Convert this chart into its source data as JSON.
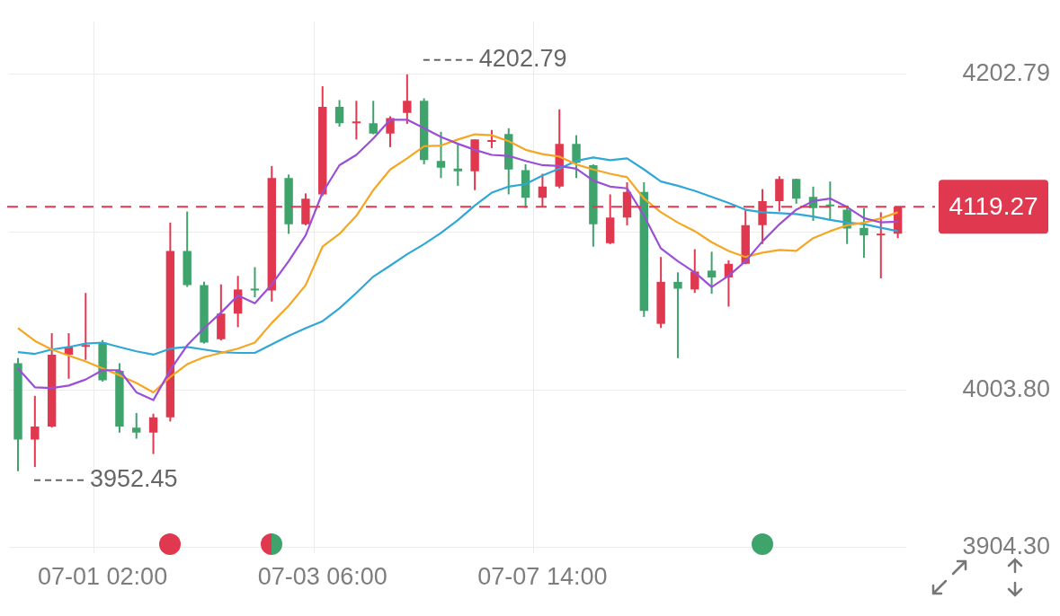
{
  "chart_data": {
    "type": "candlestick",
    "categories": [
      null,
      null,
      null,
      null,
      null,
      "07-01 02:00",
      null,
      null,
      null,
      null,
      null,
      null,
      null,
      null,
      null,
      null,
      null,
      null,
      "07-03 06:00",
      null,
      null,
      null,
      null,
      null,
      null,
      null,
      null,
      null,
      null,
      null,
      null,
      "07-07 14:00",
      null,
      null,
      null,
      null,
      null,
      null,
      null,
      null,
      null,
      null,
      null,
      null,
      null,
      null,
      null,
      null,
      null,
      null,
      null,
      null,
      null
    ],
    "ohlc": [
      [
        4020.6,
        4023.8,
        3952.45,
        3972.4
      ],
      [
        3972.4,
        4000.0,
        3955.1,
        3980.6
      ],
      [
        3980.6,
        4039.5,
        3980.0,
        4026.0
      ],
      [
        4026.0,
        4039.5,
        4010.8,
        4030.9
      ],
      [
        4030.9,
        4064.9,
        4022.7,
        4031.5
      ],
      [
        4033.6,
        4035.2,
        4009.0,
        4009.8
      ],
      [
        4015.7,
        4020.6,
        3976.8,
        3980.6
      ],
      [
        3980.0,
        3989.2,
        3973.0,
        3976.8
      ],
      [
        3976.8,
        3988.7,
        3963.3,
        3986.5
      ],
      [
        3986.5,
        4109.3,
        3983.8,
        4091.4
      ],
      [
        4091.4,
        4116.3,
        4068.7,
        4069.8
      ],
      [
        4069.8,
        4072.0,
        4033.0,
        4033.6
      ],
      [
        4035.7,
        4070.3,
        4035.0,
        4051.9
      ],
      [
        4051.9,
        4075.7,
        4043.3,
        4067.1
      ],
      [
        4067.1,
        4081.2,
        4062.2,
        4066.5
      ],
      [
        4066.5,
        4145.0,
        4059.5,
        4137.4
      ],
      [
        4137.4,
        4139.6,
        4102.2,
        4108.2
      ],
      [
        4108.2,
        4127.7,
        4107.6,
        4124.4
      ],
      [
        4127.1,
        4195.3,
        4126.0,
        4182.3
      ],
      [
        4182.3,
        4186.6,
        4169.8,
        4172.0
      ],
      [
        4172.0,
        4186.1,
        4161.7,
        4172.5
      ],
      [
        4172.0,
        4186.1,
        4165.0,
        4165.5
      ],
      [
        4165.5,
        4176.3,
        4156.9,
        4175.2
      ],
      [
        4178.5,
        4202.79,
        4171.5,
        4186.1
      ],
      [
        4186.1,
        4187.7,
        4146.1,
        4148.8
      ],
      [
        4148.2,
        4166.6,
        4137.4,
        4143.9
      ],
      [
        4143.4,
        4159.0,
        4132.5,
        4141.7
      ],
      [
        4141.7,
        4161.7,
        4129.8,
        4161.7
      ],
      [
        4160.2,
        4167.7,
        4156.3,
        4161.0
      ],
      [
        4165.1,
        4168.8,
        4127.1,
        4142.8
      ],
      [
        4142.3,
        4146.1,
        4118.5,
        4125.0
      ],
      [
        4125.0,
        4140.1,
        4119.3,
        4132.0
      ],
      [
        4132.0,
        4180.7,
        4131.0,
        4159.0
      ],
      [
        4159.0,
        4164.4,
        4137.4,
        4147.1
      ],
      [
        4145.5,
        4146.0,
        4094.1,
        4108.2
      ],
      [
        4096.3,
        4127.1,
        4095.7,
        4112.5
      ],
      [
        4112.5,
        4134.7,
        4107.6,
        4128.7
      ],
      [
        4128.7,
        4134.7,
        4049.8,
        4053.6
      ],
      [
        4045.4,
        4087.6,
        4042.8,
        4071.9
      ],
      [
        4071.9,
        4077.9,
        4023.8,
        4067.6
      ],
      [
        4067.1,
        4092.5,
        4064.9,
        4078.4
      ],
      [
        4079.0,
        4090.9,
        4064.4,
        4074.7
      ],
      [
        4074.7,
        4085.5,
        4056.3,
        4083.3
      ],
      [
        4083.3,
        4117.9,
        4083.0,
        4107.6
      ],
      [
        4107.6,
        4130.4,
        4095.8,
        4122.8
      ],
      [
        4122.8,
        4138.5,
        4116.3,
        4136.9
      ],
      [
        4136.9,
        4137.0,
        4121.2,
        4124.4
      ],
      [
        4125.5,
        4132.0,
        4110.4,
        4118.5
      ],
      [
        4120.6,
        4135.2,
        4110.4,
        4119.5
      ],
      [
        4117.4,
        4120.1,
        4095.8,
        4105.5
      ],
      [
        4106.0,
        4118.5,
        4087.1,
        4101.2
      ],
      [
        4101.2,
        4115.8,
        4074.1,
        4101.8
      ],
      [
        4102.3,
        4119.27,
        4099.5,
        4119.27
      ]
    ],
    "colors": [
      "#3fa36c",
      "#e0394f",
      "#e0394f",
      "#e0394f",
      "#e0394f",
      "#3fa36c",
      "#3fa36c",
      "#3fa36c",
      "#e0394f",
      "#e0394f",
      "#3fa36c",
      "#3fa36c",
      "#e0394f",
      "#e0394f",
      "#3fa36c",
      "#e0394f",
      "#3fa36c",
      "#e0394f",
      "#e0394f",
      "#3fa36c",
      "#e0394f",
      "#3fa36c",
      "#e0394f",
      "#e0394f",
      "#3fa36c",
      "#3fa36c",
      "#3fa36c",
      "#e0394f",
      "#e0394f",
      "#3fa36c",
      "#3fa36c",
      "#e0394f",
      "#e0394f",
      "#3fa36c",
      "#3fa36c",
      "#e0394f",
      "#e0394f",
      "#3fa36c",
      "#e0394f",
      "#3fa36c",
      "#e0394f",
      "#3fa36c",
      "#e0394f",
      "#e0394f",
      "#e0394f",
      "#e0394f",
      "#3fa36c",
      "#3fa36c",
      "#3fa36c",
      "#3fa36c",
      "#3fa36c",
      "#e0394f",
      "#e0394f"
    ],
    "series": [
      {
        "type": "line",
        "color": "#9b4fd6",
        "values": [
          4017.3,
          4005.4,
          4004.9,
          4006.5,
          4010.3,
          4016.2,
          4016.2,
          4002.2,
          3997.3,
          4016.2,
          4031.9,
          4042.7,
          4052.5,
          4063.3,
          4058.4,
          4070.3,
          4084.9,
          4101.2,
          4128.2,
          4145.5,
          4152.0,
          4162.3,
          4174.2,
          4174.2,
          4168.8,
          4163.3,
          4159.0,
          4155.2,
          4152.0,
          4151.4,
          4148.2,
          4145.5,
          4145.0,
          4143.3,
          4135.8,
          4132.0,
          4130.9,
          4113.6,
          4093.0,
          4084.9,
          4077.9,
          4068.7,
          4075.7,
          4084.9,
          4097.4,
          4108.2,
          4117.5,
          4122.9,
          4124.5,
          4119.1,
          4112.1,
          4109.4,
          4109.9
        ]
      },
      {
        "type": "line",
        "color": "#f5a623",
        "values": [
          4042.7,
          4034.6,
          4029.2,
          4025.4,
          4021.7,
          4017.3,
          4013.0,
          4008.1,
          4002.2,
          4011.9,
          4020.0,
          4024.4,
          4027.1,
          4029.8,
          4033.6,
          4046.0,
          4056.8,
          4069.8,
          4094.1,
          4102.2,
          4113.6,
          4129.8,
          4142.8,
          4149.8,
          4157.4,
          4157.9,
          4161.7,
          4165.0,
          4164.4,
          4160.6,
          4155.2,
          4152.5,
          4150.9,
          4146.0,
          4142.8,
          4140.1,
          4137.9,
          4124.4,
          4115.8,
          4109.3,
          4103.9,
          4096.9,
          4091.4,
          4087.6,
          4090.3,
          4092.0,
          4091.4,
          4099.5,
          4103.9,
          4107.6,
          4109.3,
          4112.0,
          4115.8
        ]
      },
      {
        "type": "line",
        "color": "#2fa8d8",
        "values": [
          4027.6,
          4026.5,
          4029.2,
          4030.8,
          4033.0,
          4033.6,
          4030.8,
          4028.1,
          4026.0,
          4029.8,
          4030.8,
          4029.2,
          4027.6,
          4027.1,
          4027.1,
          4032.5,
          4037.9,
          4042.7,
          4047.1,
          4055.2,
          4064.9,
          4075.2,
          4082.2,
          4089.3,
          4095.7,
          4102.8,
          4110.9,
          4120.1,
          4128.2,
          4132.0,
          4133.6,
          4139.0,
          4143.3,
          4148.2,
          4150.4,
          4148.7,
          4149.8,
          4142.8,
          4135.2,
          4132.5,
          4129.3,
          4125.5,
          4121.7,
          4117.4,
          4115.8,
          4115.2,
          4114.7,
          4113.1,
          4111.0,
          4109.3,
          4108.3,
          4106.0,
          4103.9
        ]
      }
    ],
    "ylim": [
      3901,
      4236
    ],
    "yticks": [
      {
        "value": 3904.3,
        "label": "3904.30"
      },
      {
        "value": 4003.8,
        "label": "4003.80"
      },
      {
        "value": 4103.3,
        "label": null
      },
      {
        "value": 4202.79,
        "label": "4202.79"
      }
    ],
    "grid": true,
    "ref_lines": [
      {
        "axis": "y",
        "value": 4119.27,
        "label": "4119.27",
        "color": "#e0394f",
        "line_style": "dashed"
      }
    ],
    "annotations": [
      "4202.79",
      "3952.45"
    ]
  }
}
